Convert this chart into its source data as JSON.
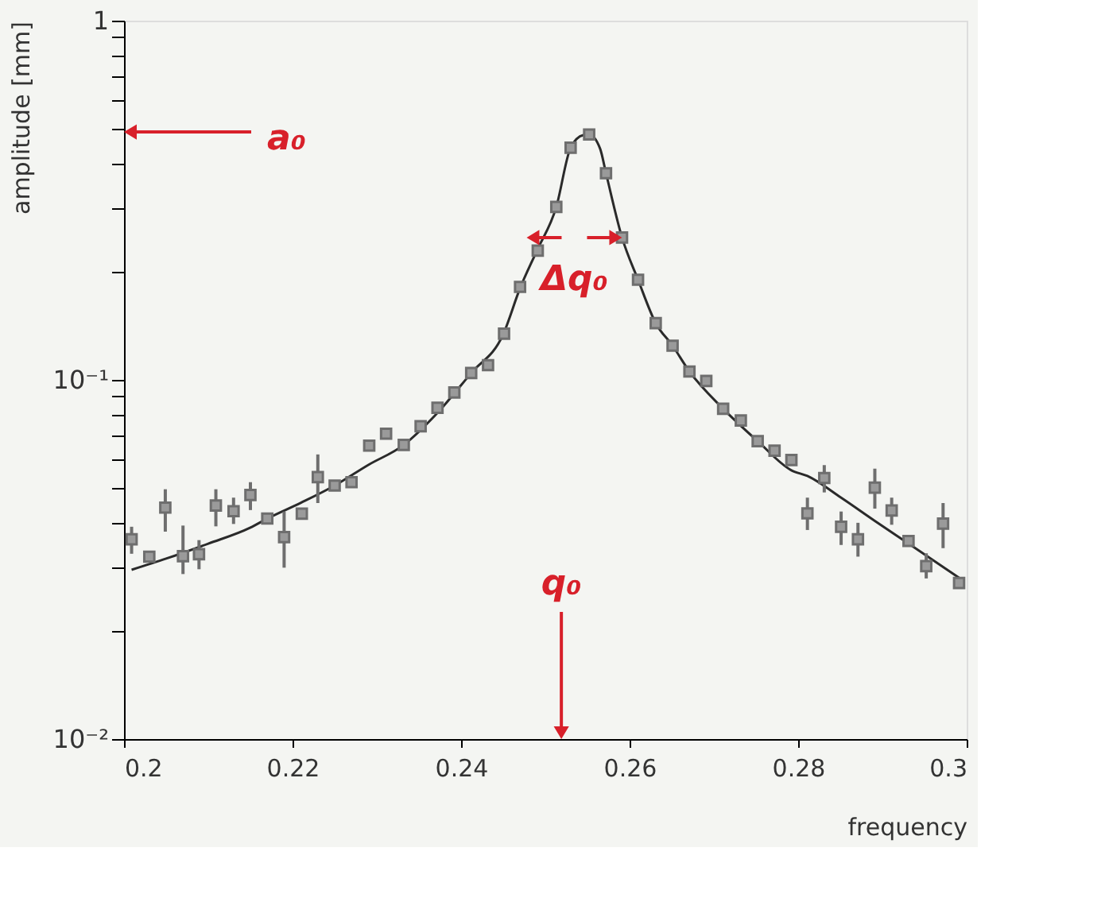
{
  "chart_data": {
    "type": "scatter",
    "xlabel": "frequency",
    "ylabel": "amplitude [mm]",
    "log": "y",
    "grid": false,
    "xlim": [
      0.2,
      0.3
    ],
    "xticks": [
      {
        "value": 0.2,
        "label": "0.2"
      },
      0.22,
      0.24,
      0.26,
      0.28,
      {
        "value": 0.3,
        "label": "0.3"
      }
    ],
    "ylim": [
      0.01,
      1
    ],
    "yticks": [
      {
        "value": 0.01,
        "label": "10⁻²"
      },
      {
        "value": 0.02,
        "label": null
      },
      {
        "value": 0.03,
        "label": null
      },
      {
        "value": 0.04,
        "label": null
      },
      {
        "value": 0.05,
        "label": null
      },
      {
        "value": 0.06,
        "label": null
      },
      {
        "value": 0.07,
        "label": null
      },
      {
        "value": 0.08,
        "label": null
      },
      {
        "value": 0.09,
        "label": null
      },
      {
        "value": 0.1,
        "label": "10⁻¹"
      },
      {
        "value": 0.2,
        "label": null
      },
      {
        "value": 0.3,
        "label": null
      },
      {
        "value": 0.4,
        "label": null
      },
      {
        "value": 0.5,
        "label": null
      },
      {
        "value": 0.6,
        "label": null
      },
      {
        "value": 0.7,
        "label": null
      },
      {
        "value": 0.8,
        "label": null
      },
      {
        "value": 0.9,
        "label": null
      },
      1
    ],
    "series": [
      {
        "marker": "square",
        "color": "#6e6e6e",
        "x": [
          0.2009,
          0.203,
          0.2049,
          0.207,
          0.2089,
          0.2109,
          0.213,
          0.215,
          0.217,
          0.219,
          0.2211,
          0.223,
          0.225,
          0.227,
          0.2291,
          0.2311,
          0.2332,
          0.2352,
          0.2372,
          0.2392,
          0.2412,
          0.2432,
          0.2451,
          0.247,
          0.2491,
          0.2513,
          0.253,
          0.2552,
          0.2572,
          0.2591,
          0.261,
          0.2631,
          0.2651,
          0.2671,
          0.2691,
          0.2711,
          0.2732,
          0.2752,
          0.2772,
          0.2792,
          0.2811,
          0.2831,
          0.2851,
          0.2871,
          0.2891,
          0.2911,
          0.2931,
          0.2952,
          0.2972,
          0.2991
        ],
        "values": [
          0.036,
          0.0322,
          0.0441,
          0.0323,
          0.0327,
          0.0447,
          0.0431,
          0.0478,
          0.0411,
          0.0365,
          0.0424,
          0.0536,
          0.0508,
          0.0519,
          0.0656,
          0.0708,
          0.0659,
          0.0743,
          0.0836,
          0.0922,
          0.1045,
          0.1099,
          0.1345,
          0.1815,
          0.229,
          0.303,
          0.443,
          0.482,
          0.376,
          0.249,
          0.19,
          0.1438,
          0.1245,
          0.1055,
          0.0993,
          0.0831,
          0.0771,
          0.0675,
          0.0635,
          0.0598,
          0.0425,
          0.0533,
          0.039,
          0.036,
          0.0501,
          0.0433,
          0.0356,
          0.0303,
          0.0398,
          0.0272
        ],
        "errors": [
          [
            0.0328,
            0.039
          ],
          null,
          [
            0.0378,
            0.0496
          ],
          [
            0.0288,
            0.0393
          ],
          [
            0.0297,
            0.0358
          ],
          [
            0.0391,
            0.0496
          ],
          [
            0.0397,
            0.047
          ],
          [
            0.0434,
            0.0519
          ],
          null,
          [
            0.03,
            0.043
          ],
          null,
          [
            0.0454,
            0.062
          ],
          null,
          null,
          null,
          null,
          null,
          null,
          null,
          null,
          null,
          null,
          null,
          null,
          null,
          null,
          null,
          null,
          null,
          null,
          null,
          null,
          null,
          null,
          null,
          null,
          null,
          null,
          null,
          null,
          [
            0.0382,
            0.047
          ],
          [
            0.0486,
            0.0579
          ],
          [
            0.0347,
            0.043
          ],
          [
            0.0322,
            0.04
          ],
          [
            0.0438,
            0.0566
          ],
          [
            0.0395,
            0.047
          ],
          null,
          [
            0.028,
            0.0329
          ],
          [
            0.034,
            0.0454
          ],
          null
        ]
      },
      {
        "type": "line",
        "color": "#2a2a2a",
        "line_style": "solid",
        "marker": "none",
        "x": [
          0.2009,
          0.205,
          0.21,
          0.215,
          0.217,
          0.221,
          0.225,
          0.229,
          0.2332,
          0.237,
          0.2412,
          0.245,
          0.247,
          0.249,
          0.2513,
          0.253,
          0.2545,
          0.2552,
          0.2565,
          0.2572,
          0.2591,
          0.261,
          0.2631,
          0.2651,
          0.2671,
          0.2711,
          0.2752,
          0.2792,
          0.2811,
          0.2851,
          0.2891,
          0.2931,
          0.2991
        ],
        "values": [
          0.0296,
          0.0318,
          0.035,
          0.0388,
          0.0411,
          0.0455,
          0.0508,
          0.058,
          0.0659,
          0.08,
          0.1045,
          0.134,
          0.18,
          0.229,
          0.303,
          0.443,
          0.48,
          0.482,
          0.44,
          0.376,
          0.249,
          0.19,
          0.1438,
          0.1245,
          0.1055,
          0.0831,
          0.0675,
          0.056,
          0.054,
          0.047,
          0.0405,
          0.035,
          0.0281
        ]
      }
    ],
    "annotations": [
      "a₀",
      {
        "text": "Δq₀",
        "x": 0.2591,
        "y": 0.249
      },
      "q₀"
    ]
  }
}
